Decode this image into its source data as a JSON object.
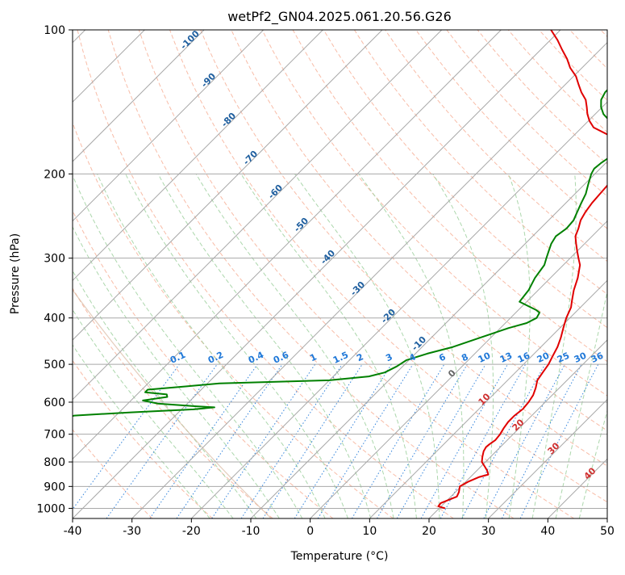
{
  "chart_data": {
    "type": "line",
    "title": "wetPf2_GN04.2025.061.20.56.G26",
    "xlabel": "Temperature (°C)",
    "ylabel": "Pressure (hPa)",
    "xlim": [
      -40,
      50
    ],
    "ylim": [
      1050,
      100
    ],
    "y_scale": "log",
    "grid": true,
    "x_ticks": [
      "-40",
      "-30",
      "-20",
      "-10",
      "0",
      "10",
      "20",
      "30",
      "40",
      "50"
    ],
    "y_ticks": [
      "100",
      "200",
      "300",
      "400",
      "500",
      "600",
      "700",
      "800",
      "900",
      "1000"
    ],
    "colors": {
      "temperature": "#e00000",
      "dewpoint": "#008000",
      "isotherm": "#a8a8a8",
      "dry_adiabat": "#f5a58a",
      "moist_adiabat": "#9ed09e",
      "mixing_ratio": "#1f78d8",
      "isotherm_label": "#1f5f9f",
      "adiabat_label": "#d03030",
      "height_curve": "#d8b8a0"
    },
    "isotherm_labels": [
      "-100",
      "-90",
      "-80",
      "-70",
      "-60",
      "-50",
      "-40",
      "-30",
      "-20",
      "-10"
    ],
    "mixing_ratio_labels": [
      "0.1",
      "0.2",
      "0.4",
      "0.6",
      "1",
      "1.5",
      "2",
      "3",
      "4",
      "6",
      "8",
      "10",
      "13",
      "16",
      "20",
      "25",
      "30",
      "36"
    ],
    "dry_adiabat_labels": [
      "0",
      "10",
      "20",
      "30",
      "40"
    ],
    "series": [
      {
        "values": [
          [
            1000,
            21.0
          ],
          [
            990,
            19.5
          ],
          [
            975,
            19.4
          ],
          [
            960,
            20.2
          ],
          [
            945,
            21.0
          ],
          [
            925,
            20.6
          ],
          [
            900,
            19.8
          ],
          [
            880,
            20.4
          ],
          [
            860,
            21.5
          ],
          [
            850,
            22.6
          ],
          [
            835,
            21.8
          ],
          [
            820,
            20.8
          ],
          [
            800,
            19.4
          ],
          [
            780,
            18.6
          ],
          [
            760,
            17.9
          ],
          [
            745,
            17.6
          ],
          [
            735,
            17.7
          ],
          [
            720,
            18.0
          ],
          [
            700,
            17.8
          ],
          [
            680,
            17.4
          ],
          [
            660,
            17.1
          ],
          [
            640,
            17.1
          ],
          [
            620,
            17.4
          ],
          [
            600,
            17.2
          ],
          [
            580,
            16.8
          ],
          [
            560,
            16.0
          ],
          [
            540,
            15.0
          ],
          [
            520,
            14.6
          ],
          [
            500,
            14.2
          ],
          [
            480,
            13.5
          ],
          [
            460,
            12.8
          ],
          [
            440,
            11.8
          ],
          [
            420,
            10.6
          ],
          [
            400,
            9.4
          ],
          [
            380,
            8.4
          ],
          [
            370,
            7.6
          ],
          [
            350,
            6.0
          ],
          [
            330,
            4.6
          ],
          [
            310,
            2.8
          ],
          [
            300,
            1.4
          ],
          [
            290,
            0.0
          ],
          [
            280,
            -1.4
          ],
          [
            270,
            -2.8
          ],
          [
            260,
            -3.6
          ],
          [
            250,
            -4.6
          ],
          [
            240,
            -5.2
          ],
          [
            230,
            -5.6
          ],
          [
            220,
            -5.8
          ],
          [
            210,
            -6.0
          ],
          [
            200,
            -6.2
          ],
          [
            195,
            -6.2
          ],
          [
            190,
            -6.6
          ],
          [
            185,
            -8.2
          ],
          [
            180,
            -9.4
          ],
          [
            175,
            -10.6
          ],
          [
            170,
            -12.0
          ],
          [
            165,
            -14.8
          ],
          [
            160,
            -18.0
          ],
          [
            155,
            -19.8
          ],
          [
            150,
            -21.3
          ],
          [
            145,
            -22.6
          ],
          [
            140,
            -24.0
          ],
          [
            135,
            -26.0
          ],
          [
            130,
            -27.8
          ],
          [
            125,
            -29.6
          ],
          [
            120,
            -32.0
          ],
          [
            115,
            -34.0
          ],
          [
            110,
            -36.4
          ],
          [
            105,
            -38.8
          ],
          [
            100,
            -41.6
          ]
        ]
      },
      {
        "values": [
          [
            1000,
            -61.0
          ],
          [
            975,
            -61.0
          ],
          [
            950,
            -61.0
          ],
          [
            925,
            -61.0
          ],
          [
            900,
            -61.5
          ],
          [
            875,
            -62.0
          ],
          [
            850,
            -62.5
          ],
          [
            825,
            -63.0
          ],
          [
            800,
            -63.5
          ],
          [
            775,
            -64.0
          ],
          [
            750,
            -64.5
          ],
          [
            725,
            -65.0
          ],
          [
            700,
            -61.0
          ],
          [
            688,
            -58.5
          ],
          [
            678,
            -58.5
          ],
          [
            665,
            -60.0
          ],
          [
            640,
            -57.0
          ],
          [
            630,
            -48.0
          ],
          [
            621,
            -38.0
          ],
          [
            615,
            -34.8
          ],
          [
            612,
            -38.0
          ],
          [
            604,
            -45.0
          ],
          [
            595,
            -48.0
          ],
          [
            585,
            -44.5
          ],
          [
            578,
            -45.0
          ],
          [
            572,
            -49.0
          ],
          [
            565,
            -49.0
          ],
          [
            556,
            -43.0
          ],
          [
            548,
            -38.0
          ],
          [
            540,
            -20.0
          ],
          [
            530,
            -14.0
          ],
          [
            520,
            -12.0
          ],
          [
            505,
            -11.0
          ],
          [
            490,
            -10.4
          ],
          [
            475,
            -8.0
          ],
          [
            460,
            -4.8
          ],
          [
            440,
            -1.8
          ],
          [
            420,
            1.4
          ],
          [
            410,
            3.6
          ],
          [
            400,
            4.4
          ],
          [
            390,
            4.0
          ],
          [
            385,
            3.0
          ],
          [
            380,
            1.6
          ],
          [
            370,
            -1.2
          ],
          [
            350,
            -1.6
          ],
          [
            330,
            -2.6
          ],
          [
            310,
            -3.2
          ],
          [
            300,
            -4.0
          ],
          [
            290,
            -4.8
          ],
          [
            280,
            -5.6
          ],
          [
            270,
            -6.1
          ],
          [
            260,
            -5.6
          ],
          [
            250,
            -5.8
          ],
          [
            240,
            -6.6
          ],
          [
            230,
            -7.4
          ],
          [
            220,
            -8.2
          ],
          [
            210,
            -9.4
          ],
          [
            200,
            -10.6
          ],
          [
            195,
            -11.0
          ],
          [
            190,
            -10.8
          ],
          [
            185,
            -10.4
          ],
          [
            180,
            -10.2
          ],
          [
            175,
            -9.8
          ],
          [
            170,
            -10.2
          ],
          [
            165,
            -11.5
          ],
          [
            160,
            -13.8
          ],
          [
            155,
            -16.4
          ],
          [
            150,
            -18.6
          ],
          [
            145,
            -20.2
          ],
          [
            140,
            -21.4
          ],
          [
            135,
            -22.0
          ],
          [
            130,
            -22.0
          ],
          [
            125,
            -21.8
          ],
          [
            120,
            -21.8
          ],
          [
            115,
            -22.0
          ],
          [
            110,
            -22.4
          ],
          [
            105,
            -22.8
          ],
          [
            100,
            -23.4
          ]
        ]
      }
    ]
  }
}
